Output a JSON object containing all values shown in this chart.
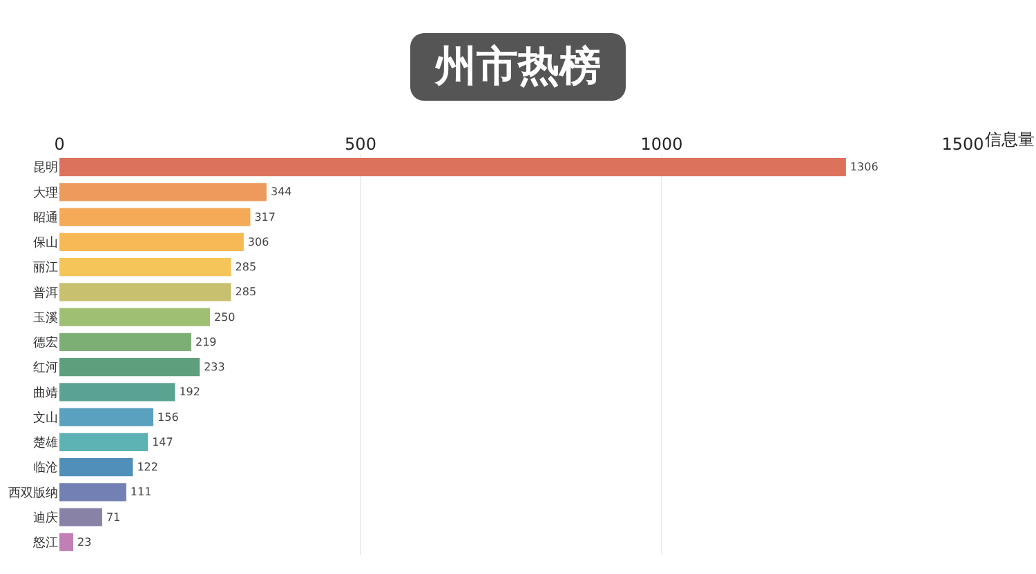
{
  "chart_data": {
    "type": "bar",
    "orientation": "horizontal",
    "title": "州市热榜",
    "xlabel": "信息量",
    "categories": [
      "昆明",
      "大理",
      "昭通",
      "保山",
      "丽江",
      "普洱",
      "玉溪",
      "德宏",
      "红河",
      "曲靖",
      "文山",
      "楚雄",
      "临沧",
      "西双版纳",
      "迪庆",
      "怒江"
    ],
    "values": [
      1306,
      344,
      317,
      306,
      285,
      285,
      250,
      219,
      233,
      192,
      156,
      147,
      122,
      111,
      71,
      23
    ],
    "colors": [
      "#dc725b",
      "#ee9a5d",
      "#f4aa57",
      "#f7b955",
      "#f5c55a",
      "#c9c06f",
      "#9fbf72",
      "#7caf74",
      "#5e9f7e",
      "#5aa392",
      "#5aa0bf",
      "#5db3b4",
      "#4f8fb8",
      "#7380b3",
      "#8882a7",
      "#c27fb6"
    ],
    "xlim": [
      0,
      1500
    ],
    "xticks": [
      0,
      500,
      1000,
      1500
    ],
    "grid": "x",
    "data_labels": true
  }
}
